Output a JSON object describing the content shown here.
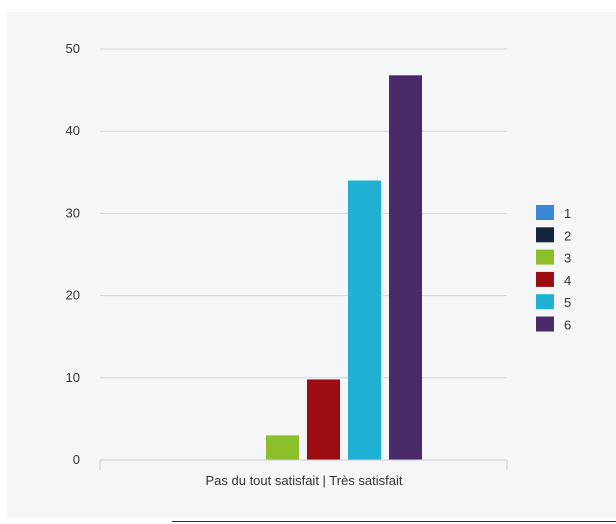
{
  "chart_data": {
    "type": "bar",
    "categories": [
      "Pas du tout satisfait | Très satisfait"
    ],
    "series": [
      {
        "name": "1",
        "color": "#3a87d6",
        "values": [
          0
        ]
      },
      {
        "name": "2",
        "color": "#14243c",
        "values": [
          0
        ]
      },
      {
        "name": "3",
        "color": "#8dbf2a",
        "values": [
          3
        ]
      },
      {
        "name": "4",
        "color": "#9b0d10",
        "values": [
          9.8
        ]
      },
      {
        "name": "5",
        "color": "#1fb0d3",
        "values": [
          34
        ]
      },
      {
        "name": "6",
        "color": "#4a2b69",
        "values": [
          46.8
        ]
      }
    ],
    "ylim": [
      0,
      50
    ],
    "yticks": [
      0,
      10,
      20,
      30,
      40,
      50
    ],
    "grid": true,
    "legend": "right"
  }
}
